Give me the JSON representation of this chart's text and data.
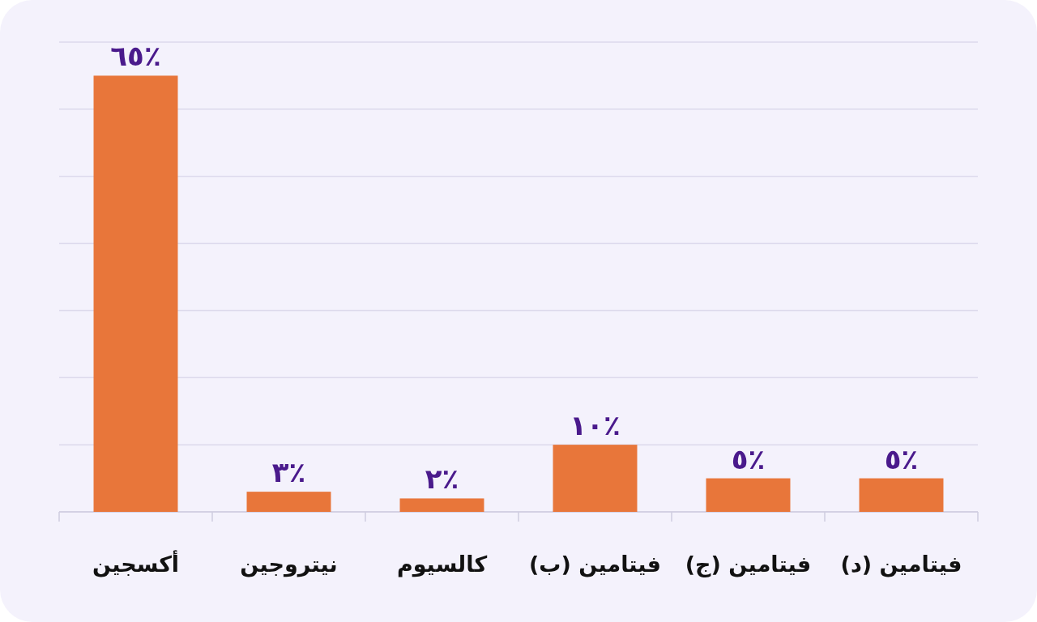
{
  "chart_data": {
    "type": "bar",
    "categories": [
      "أكسجين",
      "نيتروجين",
      "كالسيوم",
      "فيتامين (ب)",
      "فيتامين (ج)",
      "فيتامين (د)"
    ],
    "values": [
      65,
      3,
      2,
      10,
      5,
      5
    ],
    "value_labels": [
      "٦٥٪",
      "٣٪",
      "٢٪",
      "١٠٪",
      "٥٪",
      "٥٪"
    ],
    "color": "#e8763a",
    "ylim": [
      0,
      70
    ],
    "yticks": [
      {
        "value": 0,
        "label": null
      },
      {
        "value": 10,
        "label": null
      },
      {
        "value": 20,
        "label": null
      },
      {
        "value": 30,
        "label": null
      },
      {
        "value": 40,
        "label": null
      },
      {
        "value": 50,
        "label": null
      },
      {
        "value": 60,
        "label": null
      },
      {
        "value": 70,
        "label": null
      }
    ],
    "tick_labels": "x",
    "grid": "y"
  }
}
